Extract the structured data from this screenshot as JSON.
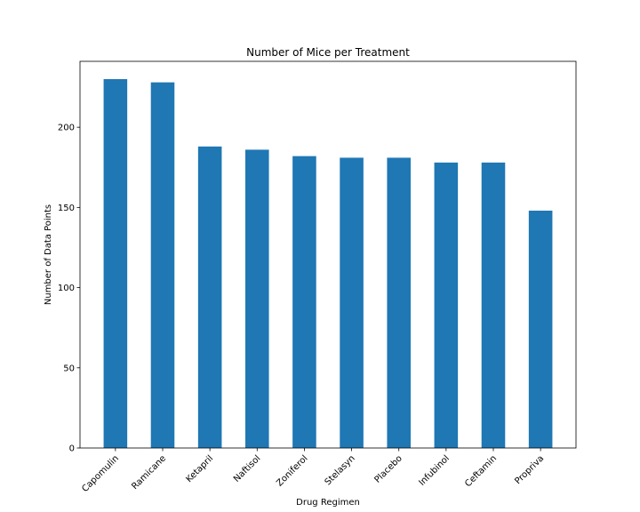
{
  "chart_data": {
    "type": "bar",
    "title": "Number of Mice per Treatment",
    "xlabel": "Drug Regimen",
    "ylabel": "Number of Data Points",
    "categories": [
      "Capomulin",
      "Ramicane",
      "Ketapril",
      "Naftisol",
      "Zoniferol",
      "Stelasyn",
      "Placebo",
      "Infubinol",
      "Ceftamin",
      "Propriva"
    ],
    "values": [
      230,
      228,
      188,
      186,
      182,
      181,
      181,
      178,
      178,
      148
    ],
    "ylim": [
      0,
      241.1
    ],
    "yticks": [
      0,
      50,
      100,
      150,
      200
    ],
    "grid": false,
    "legend": "none",
    "bar_color": "#1f77b4"
  }
}
